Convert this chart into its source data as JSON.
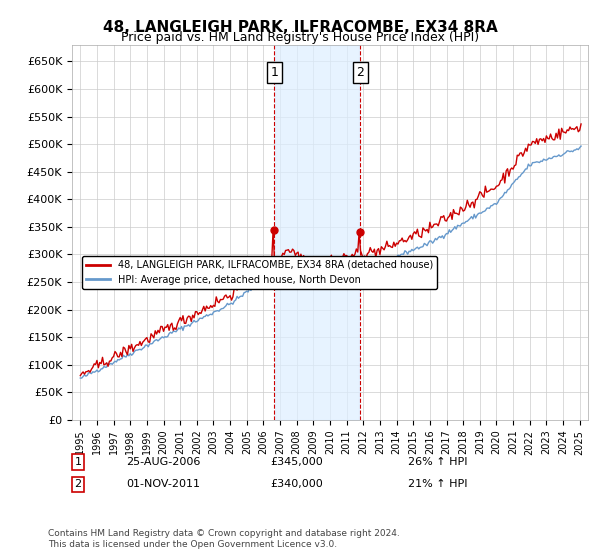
{
  "title": "48, LANGLEIGH PARK, ILFRACOMBE, EX34 8RA",
  "subtitle": "Price paid vs. HM Land Registry's House Price Index (HPI)",
  "ylabel_ticks": [
    "£0",
    "£50K",
    "£100K",
    "£150K",
    "£200K",
    "£250K",
    "£300K",
    "£350K",
    "£400K",
    "£450K",
    "£500K",
    "£550K",
    "£600K",
    "£650K"
  ],
  "ytick_values": [
    0,
    50000,
    100000,
    150000,
    200000,
    250000,
    300000,
    350000,
    400000,
    450000,
    500000,
    550000,
    600000,
    650000
  ],
  "ylim": [
    0,
    680000
  ],
  "xlim_start": 1994.5,
  "xlim_end": 2025.5,
  "red_line_color": "#cc0000",
  "blue_line_color": "#6699cc",
  "highlight_fill_color": "#ddeeff",
  "highlight_border_color": "#cc0000",
  "legend_label_red": "48, LANGLEIGH PARK, ILFRACOMBE, EX34 8RA (detached house)",
  "legend_label_blue": "HPI: Average price, detached house, North Devon",
  "sale1_label": "1",
  "sale1_date": "25-AUG-2006",
  "sale1_price": "£345,000",
  "sale1_hpi": "26% ↑ HPI",
  "sale1_x": 2006.65,
  "sale2_label": "2",
  "sale2_date": "01-NOV-2011",
  "sale2_price": "£340,000",
  "sale2_hpi": "21% ↑ HPI",
  "sale2_x": 2011.83,
  "footnote": "Contains HM Land Registry data © Crown copyright and database right 2024.\nThis data is licensed under the Open Government Licence v3.0.",
  "background_color": "#ffffff",
  "plot_bg_color": "#ffffff",
  "grid_color": "#cccccc"
}
